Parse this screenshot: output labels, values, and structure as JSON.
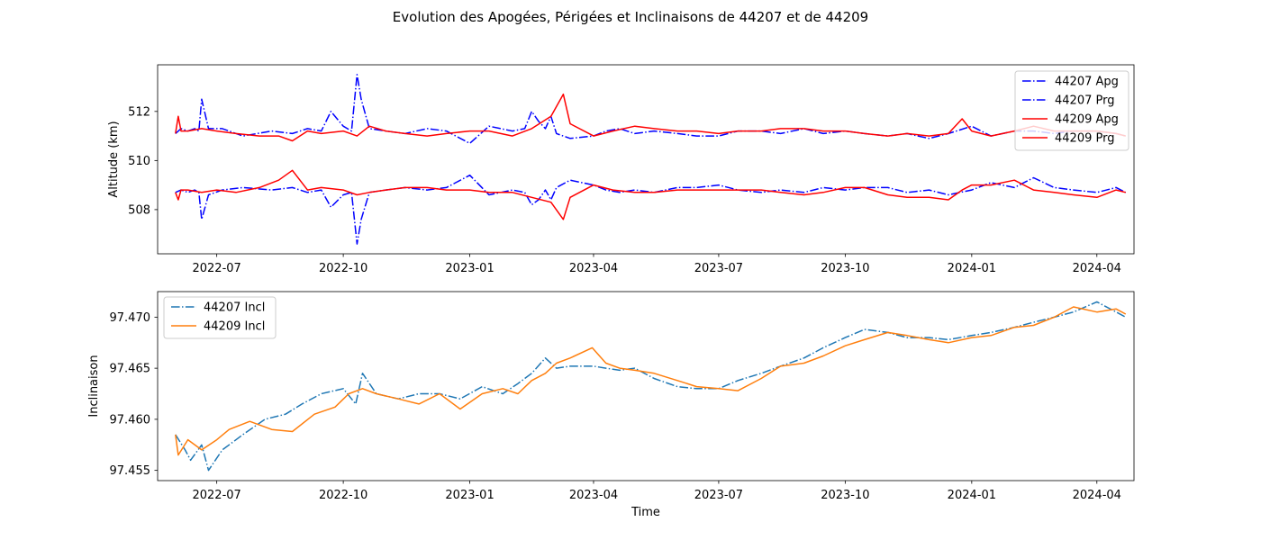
{
  "figure_title": "Evolution des Apogées, Périgées et Inclinaisons de 44207 et de 44209",
  "chart_data": [
    {
      "type": "line",
      "title": "",
      "xlabel": "",
      "ylabel": "Altitude (km)",
      "x_tick_labels": [
        "2022-07",
        "2022-10",
        "2023-01",
        "2023-04",
        "2023-07",
        "2023-10",
        "2024-01",
        "2024-04"
      ],
      "x_ticks": [
        "2022-07-01",
        "2022-10-01",
        "2023-01-01",
        "2023-04-01",
        "2023-07-01",
        "2023-10-01",
        "2024-01-01",
        "2024-04-01"
      ],
      "xlim": [
        "2022-05-19",
        "2024-04-28"
      ],
      "y_ticks": [
        508,
        510,
        512
      ],
      "y_tick_labels": [
        "508",
        "510",
        "512"
      ],
      "ylim": [
        506.2,
        513.9
      ],
      "grid": false,
      "legend_position": "upper right",
      "series": [
        {
          "name": "44207 Apg",
          "color": "#0000ff",
          "style": "dash-dot",
          "x": [
            "2022-06-01",
            "2022-06-05",
            "2022-06-10",
            "2022-06-15",
            "2022-06-18",
            "2022-06-20",
            "2022-06-25",
            "2022-07-05",
            "2022-07-20",
            "2022-08-10",
            "2022-08-25",
            "2022-09-05",
            "2022-09-15",
            "2022-09-22",
            "2022-10-01",
            "2022-10-07",
            "2022-10-11",
            "2022-10-14",
            "2022-10-20",
            "2022-11-01",
            "2022-11-15",
            "2022-12-01",
            "2022-12-15",
            "2023-01-01",
            "2023-01-15",
            "2023-02-01",
            "2023-02-10",
            "2023-02-15",
            "2023-02-20",
            "2023-02-25",
            "2023-03-01",
            "2023-03-05",
            "2023-03-15",
            "2023-04-01",
            "2023-04-10",
            "2023-04-20",
            "2023-05-01",
            "2023-05-15",
            "2023-06-01",
            "2023-06-15",
            "2023-07-01",
            "2023-07-15",
            "2023-08-01",
            "2023-08-15",
            "2023-09-01",
            "2023-09-15",
            "2023-10-01",
            "2023-10-15",
            "2023-11-01",
            "2023-11-15",
            "2023-12-01",
            "2023-12-15",
            "2024-01-01",
            "2024-01-15",
            "2024-02-01",
            "2024-02-15",
            "2024-03-01",
            "2024-03-15",
            "2024-04-01",
            "2024-04-15",
            "2024-04-22"
          ],
          "values": [
            511.1,
            511.3,
            511.2,
            511.3,
            511.2,
            512.5,
            511.3,
            511.3,
            511.0,
            511.2,
            511.1,
            511.3,
            511.2,
            512.0,
            511.4,
            511.2,
            513.5,
            512.5,
            511.3,
            511.2,
            511.1,
            511.3,
            511.2,
            510.7,
            511.4,
            511.2,
            511.3,
            512.0,
            511.6,
            511.3,
            511.8,
            511.1,
            510.9,
            511.0,
            511.2,
            511.3,
            511.1,
            511.2,
            511.1,
            511.0,
            511.0,
            511.2,
            511.2,
            511.1,
            511.3,
            511.1,
            511.2,
            511.1,
            511.0,
            511.1,
            510.9,
            511.1,
            511.4,
            511.0,
            511.2,
            511.2,
            511.1,
            511.2,
            511.2,
            511.1,
            511.0
          ]
        },
        {
          "name": "44207 Prg",
          "color": "#0000ff",
          "style": "dash-dot",
          "x": [
            "2022-06-01",
            "2022-06-05",
            "2022-06-10",
            "2022-06-15",
            "2022-06-18",
            "2022-06-20",
            "2022-06-25",
            "2022-07-05",
            "2022-07-20",
            "2022-08-10",
            "2022-08-25",
            "2022-09-05",
            "2022-09-15",
            "2022-09-22",
            "2022-10-01",
            "2022-10-07",
            "2022-10-11",
            "2022-10-14",
            "2022-10-20",
            "2022-11-01",
            "2022-11-15",
            "2022-12-01",
            "2022-12-15",
            "2023-01-01",
            "2023-01-15",
            "2023-02-01",
            "2023-02-10",
            "2023-02-15",
            "2023-02-20",
            "2023-02-25",
            "2023-03-01",
            "2023-03-05",
            "2023-03-15",
            "2023-04-01",
            "2023-04-10",
            "2023-04-20",
            "2023-05-01",
            "2023-05-15",
            "2023-06-01",
            "2023-06-15",
            "2023-07-01",
            "2023-07-15",
            "2023-08-01",
            "2023-08-15",
            "2023-09-01",
            "2023-09-15",
            "2023-10-01",
            "2023-10-15",
            "2023-11-01",
            "2023-11-15",
            "2023-12-01",
            "2023-12-15",
            "2024-01-01",
            "2024-01-15",
            "2024-02-01",
            "2024-02-15",
            "2024-03-01",
            "2024-03-15",
            "2024-04-01",
            "2024-04-15",
            "2024-04-22"
          ],
          "values": [
            508.7,
            508.8,
            508.7,
            508.8,
            508.7,
            507.6,
            508.6,
            508.8,
            508.9,
            508.8,
            508.9,
            508.7,
            508.8,
            508.1,
            508.6,
            508.7,
            506.6,
            507.6,
            508.7,
            508.8,
            508.9,
            508.8,
            508.9,
            509.4,
            508.6,
            508.8,
            508.7,
            508.2,
            508.4,
            508.8,
            508.4,
            508.9,
            509.2,
            509.0,
            508.8,
            508.7,
            508.8,
            508.7,
            508.9,
            508.9,
            509.0,
            508.8,
            508.7,
            508.8,
            508.7,
            508.9,
            508.8,
            508.9,
            508.9,
            508.7,
            508.8,
            508.6,
            508.8,
            509.1,
            508.9,
            509.3,
            508.9,
            508.8,
            508.7,
            508.9,
            508.7
          ]
        },
        {
          "name": "44209 Apg",
          "color": "#ff0000",
          "style": "solid",
          "x": [
            "2022-06-01",
            "2022-06-03",
            "2022-06-05",
            "2022-06-10",
            "2022-06-20",
            "2022-07-01",
            "2022-07-15",
            "2022-08-01",
            "2022-08-15",
            "2022-08-25",
            "2022-09-05",
            "2022-09-15",
            "2022-10-01",
            "2022-10-11",
            "2022-10-20",
            "2022-11-01",
            "2022-11-15",
            "2022-12-01",
            "2022-12-15",
            "2023-01-01",
            "2023-01-15",
            "2023-02-01",
            "2023-02-15",
            "2023-03-01",
            "2023-03-10",
            "2023-03-15",
            "2023-04-01",
            "2023-04-15",
            "2023-05-01",
            "2023-05-15",
            "2023-06-01",
            "2023-06-15",
            "2023-07-01",
            "2023-07-15",
            "2023-08-01",
            "2023-08-15",
            "2023-09-01",
            "2023-09-15",
            "2023-10-01",
            "2023-10-15",
            "2023-11-01",
            "2023-11-15",
            "2023-12-01",
            "2023-12-15",
            "2023-12-25",
            "2024-01-01",
            "2024-01-15",
            "2024-02-01",
            "2024-02-15",
            "2024-03-01",
            "2024-03-15",
            "2024-04-01",
            "2024-04-15",
            "2024-04-22"
          ],
          "values": [
            511.1,
            511.8,
            511.2,
            511.2,
            511.3,
            511.2,
            511.1,
            511.0,
            511.0,
            510.8,
            511.2,
            511.1,
            511.2,
            511.0,
            511.4,
            511.2,
            511.1,
            511.0,
            511.1,
            511.2,
            511.2,
            511.0,
            511.3,
            511.8,
            512.7,
            511.5,
            511.0,
            511.2,
            511.4,
            511.3,
            511.2,
            511.2,
            511.1,
            511.2,
            511.2,
            511.3,
            511.3,
            511.2,
            511.2,
            511.1,
            511.0,
            511.1,
            511.0,
            511.1,
            511.7,
            511.2,
            511.0,
            511.2,
            511.4,
            511.2,
            511.2,
            511.2,
            511.1,
            511.0
          ]
        },
        {
          "name": "44209 Prg",
          "color": "#ff0000",
          "style": "solid",
          "x": [
            "2022-06-01",
            "2022-06-03",
            "2022-06-05",
            "2022-06-10",
            "2022-06-20",
            "2022-07-01",
            "2022-07-15",
            "2022-08-01",
            "2022-08-15",
            "2022-08-25",
            "2022-09-05",
            "2022-09-15",
            "2022-10-01",
            "2022-10-11",
            "2022-10-20",
            "2022-11-01",
            "2022-11-15",
            "2022-12-01",
            "2022-12-15",
            "2023-01-01",
            "2023-01-15",
            "2023-02-01",
            "2023-02-15",
            "2023-03-01",
            "2023-03-10",
            "2023-03-15",
            "2023-04-01",
            "2023-04-15",
            "2023-05-01",
            "2023-05-15",
            "2023-06-01",
            "2023-06-15",
            "2023-07-01",
            "2023-07-15",
            "2023-08-01",
            "2023-08-15",
            "2023-09-01",
            "2023-09-15",
            "2023-10-01",
            "2023-10-15",
            "2023-11-01",
            "2023-11-15",
            "2023-12-01",
            "2023-12-15",
            "2023-12-25",
            "2024-01-01",
            "2024-01-15",
            "2024-02-01",
            "2024-02-15",
            "2024-03-01",
            "2024-03-15",
            "2024-04-01",
            "2024-04-15",
            "2024-04-22"
          ],
          "values": [
            508.7,
            508.4,
            508.8,
            508.8,
            508.7,
            508.8,
            508.7,
            508.9,
            509.2,
            509.6,
            508.8,
            508.9,
            508.8,
            508.6,
            508.7,
            508.8,
            508.9,
            508.9,
            508.8,
            508.8,
            508.7,
            508.7,
            508.5,
            508.3,
            507.6,
            508.5,
            509.0,
            508.8,
            508.7,
            508.7,
            508.8,
            508.8,
            508.8,
            508.8,
            508.8,
            508.7,
            508.6,
            508.7,
            508.9,
            508.9,
            508.6,
            508.5,
            508.5,
            508.4,
            508.8,
            509.0,
            509.0,
            509.2,
            508.8,
            508.7,
            508.6,
            508.5,
            508.8,
            508.7
          ]
        }
      ]
    },
    {
      "type": "line",
      "title": "",
      "xlabel": "Time",
      "ylabel": "Inclinaison",
      "x_tick_labels": [
        "2022-07",
        "2022-10",
        "2023-01",
        "2023-04",
        "2023-07",
        "2023-10",
        "2024-01",
        "2024-04"
      ],
      "x_ticks": [
        "2022-07-01",
        "2022-10-01",
        "2023-01-01",
        "2023-04-01",
        "2023-07-01",
        "2023-10-01",
        "2024-01-01",
        "2024-04-01"
      ],
      "xlim": [
        "2022-05-19",
        "2024-04-28"
      ],
      "y_ticks": [
        97.455,
        97.46,
        97.465,
        97.47
      ],
      "y_tick_labels": [
        "97.455",
        "97.460",
        "97.465",
        "97.470"
      ],
      "ylim": [
        97.454,
        97.4725
      ],
      "grid": false,
      "legend_position": "upper left",
      "series": [
        {
          "name": "44207 Incl",
          "color": "#1f77b4",
          "style": "dash-dot",
          "x": [
            "2022-06-01",
            "2022-06-08",
            "2022-06-12",
            "2022-06-20",
            "2022-06-25",
            "2022-07-05",
            "2022-07-20",
            "2022-08-05",
            "2022-08-20",
            "2022-09-01",
            "2022-09-15",
            "2022-10-01",
            "2022-10-10",
            "2022-10-15",
            "2022-10-25",
            "2022-11-10",
            "2022-11-25",
            "2022-12-10",
            "2022-12-25",
            "2023-01-10",
            "2023-01-25",
            "2023-02-05",
            "2023-02-15",
            "2023-02-25",
            "2023-03-05",
            "2023-03-15",
            "2023-04-01",
            "2023-04-10",
            "2023-04-20",
            "2023-05-01",
            "2023-05-15",
            "2023-06-01",
            "2023-06-15",
            "2023-07-01",
            "2023-07-15",
            "2023-08-01",
            "2023-08-15",
            "2023-09-01",
            "2023-09-15",
            "2023-10-01",
            "2023-10-15",
            "2023-11-01",
            "2023-11-15",
            "2023-12-01",
            "2023-12-15",
            "2024-01-01",
            "2024-01-15",
            "2024-02-01",
            "2024-02-15",
            "2024-03-01",
            "2024-03-15",
            "2024-04-01",
            "2024-04-15",
            "2024-04-22"
          ],
          "values": [
            97.4585,
            97.457,
            97.456,
            97.4575,
            97.455,
            97.457,
            97.4585,
            97.46,
            97.4605,
            97.4615,
            97.4625,
            97.463,
            97.4615,
            97.4645,
            97.4625,
            97.462,
            97.4625,
            97.4625,
            97.462,
            97.4632,
            97.4625,
            97.4635,
            97.4645,
            97.466,
            97.465,
            97.4652,
            97.4652,
            97.465,
            97.4648,
            97.465,
            97.464,
            97.4632,
            97.463,
            97.463,
            97.4638,
            97.4645,
            97.4652,
            97.466,
            97.467,
            97.468,
            97.4688,
            97.4685,
            97.468,
            97.468,
            97.4678,
            97.4682,
            97.4685,
            97.469,
            97.4695,
            97.47,
            97.4705,
            97.4715,
            97.4705,
            97.47
          ]
        },
        {
          "name": "44209 Incl",
          "color": "#ff7f0e",
          "style": "solid",
          "x": [
            "2022-06-01",
            "2022-06-03",
            "2022-06-10",
            "2022-06-20",
            "2022-07-01",
            "2022-07-10",
            "2022-07-25",
            "2022-08-10",
            "2022-08-25",
            "2022-09-10",
            "2022-09-25",
            "2022-10-05",
            "2022-10-15",
            "2022-10-25",
            "2022-11-10",
            "2022-11-25",
            "2022-12-10",
            "2022-12-25",
            "2023-01-10",
            "2023-01-25",
            "2023-02-05",
            "2023-02-15",
            "2023-02-25",
            "2023-03-05",
            "2023-03-15",
            "2023-03-31",
            "2023-04-10",
            "2023-04-20",
            "2023-05-01",
            "2023-05-15",
            "2023-06-01",
            "2023-06-15",
            "2023-07-01",
            "2023-07-15",
            "2023-08-01",
            "2023-08-15",
            "2023-09-01",
            "2023-09-15",
            "2023-10-01",
            "2023-10-15",
            "2023-11-01",
            "2023-11-15",
            "2023-12-01",
            "2023-12-15",
            "2024-01-01",
            "2024-01-15",
            "2024-02-01",
            "2024-02-15",
            "2024-03-01",
            "2024-03-15",
            "2024-04-01",
            "2024-04-15",
            "2024-04-22"
          ],
          "values": [
            97.4585,
            97.4565,
            97.458,
            97.457,
            97.458,
            97.459,
            97.4598,
            97.459,
            97.4588,
            97.4605,
            97.4612,
            97.4625,
            97.463,
            97.4625,
            97.462,
            97.4615,
            97.4625,
            97.461,
            97.4625,
            97.463,
            97.4625,
            97.4638,
            97.4645,
            97.4655,
            97.466,
            97.467,
            97.4655,
            97.465,
            97.4648,
            97.4645,
            97.4638,
            97.4632,
            97.463,
            97.4628,
            97.464,
            97.4652,
            97.4655,
            97.4662,
            97.4672,
            97.4678,
            97.4685,
            97.4682,
            97.4678,
            97.4675,
            97.468,
            97.4682,
            97.469,
            97.4692,
            97.47,
            97.471,
            97.4705,
            97.4708,
            97.4703
          ]
        }
      ]
    }
  ]
}
